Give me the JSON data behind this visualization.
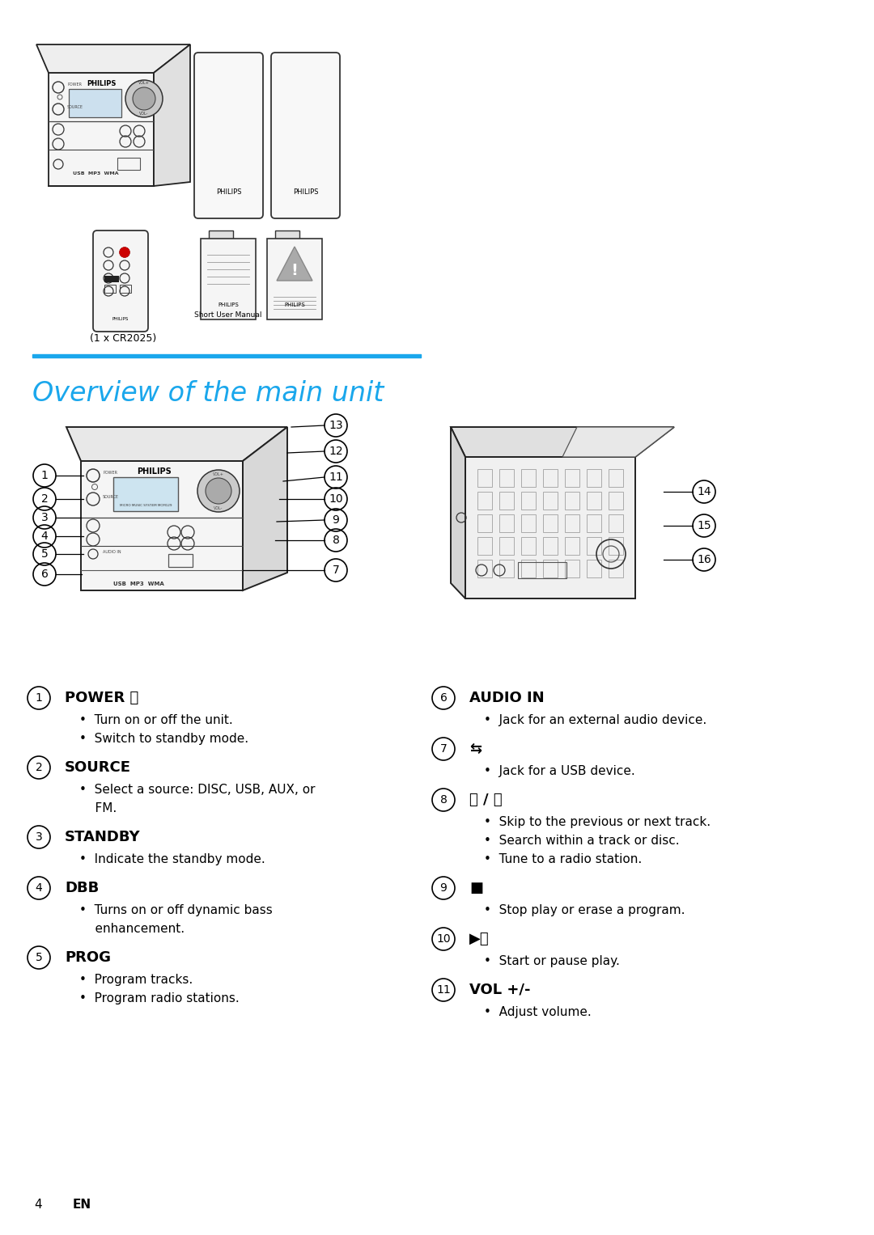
{
  "page_bg": "#ffffff",
  "title": "Overview of the main unit",
  "title_color": "#1aa7ec",
  "title_underline_color": "#1aa7ec",
  "items_left": [
    {
      "num": "1",
      "header": "POWER ⏻",
      "bullets": [
        "Turn on or off the unit.",
        "Switch to standby mode."
      ]
    },
    {
      "num": "2",
      "header": "SOURCE",
      "bullets": [
        "Select a source: DISC, USB, AUX, or\nFM."
      ]
    },
    {
      "num": "3",
      "header": "STANDBY",
      "bullets": [
        "Indicate the standby mode."
      ]
    },
    {
      "num": "4",
      "header": "DBB",
      "bullets": [
        "Turns on or off dynamic bass\nenhancement."
      ]
    },
    {
      "num": "5",
      "header": "PROG",
      "bullets": [
        "Program tracks.",
        "Program radio stations."
      ]
    }
  ],
  "items_right": [
    {
      "num": "6",
      "header": "AUDIO IN",
      "bullets": [
        "Jack for an external audio device."
      ]
    },
    {
      "num": "7",
      "header": "⇆",
      "bullets": [
        "Jack for a USB device."
      ]
    },
    {
      "num": "8",
      "header": "⏮ / ⏭",
      "bullets": [
        "Skip to the previous or next track.",
        "Search within a track or disc.",
        "Tune to a radio station."
      ]
    },
    {
      "num": "9",
      "header": "■",
      "bullets": [
        "Stop play or erase a program."
      ]
    },
    {
      "num": "10",
      "header": "▶⏸",
      "bullets": [
        "Start or pause play."
      ]
    },
    {
      "num": "11",
      "header": "VOL +/-",
      "bullets": [
        "Adjust volume."
      ]
    }
  ],
  "footer_num": "4",
  "footer_text": "EN"
}
